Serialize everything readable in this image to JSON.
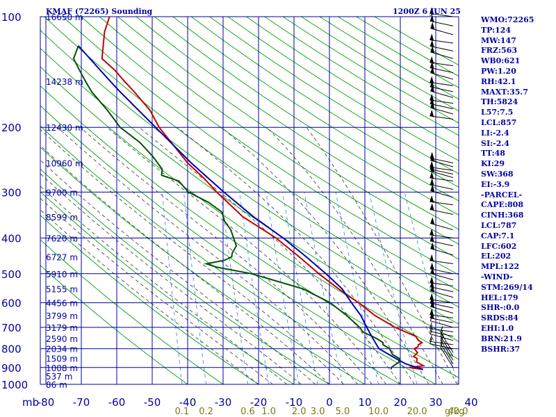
{
  "header": {
    "station": "KMAF (72265) Sounding",
    "time": "1200Z  6 JUN 25"
  },
  "indices": [
    "WMO:72265",
    "TP:124",
    "MW:147",
    "FRZ:563",
    "WB0:621",
    "PW:1.20",
    "RH:42.1",
    "MAXT:35.7",
    "TH:5824",
    "L57:7.5",
    "LCL:857",
    "LI:-2.4",
    "SI:-2.4",
    "TT:48",
    "KI:29",
    "SW:368",
    "EI:-3.9",
    "-PARCEL-",
    "CAPE:808",
    "CINH:368",
    "LCL:787",
    "CAP:7.1",
    "LFC:602",
    "EL:202",
    "MPL:122",
    "-WIND-",
    "STM:269/14",
    "HEL:179",
    "SHR-:0.0",
    "SRDS:84",
    "EHI:1.0",
    "BRN:21.9",
    "BSHR:37"
  ],
  "chart_data": {
    "type": "skew-t",
    "title": "KMAF (72265) Sounding",
    "valid_time": "1200Z  6 JUN 25",
    "x_axis": {
      "label": "mb",
      "unit": "°C",
      "ticks": [
        -80,
        -70,
        -60,
        -50,
        -40,
        -30,
        -20,
        -10,
        0,
        10,
        20,
        30,
        40
      ],
      "range": [
        -80,
        40
      ]
    },
    "y_axis": {
      "unit": "mb",
      "log_scale": true,
      "ticks": [
        100,
        200,
        300,
        400,
        500,
        600,
        700,
        800,
        900,
        1000
      ],
      "range": [
        100,
        1000
      ]
    },
    "mixing_ratio_labels": {
      "unit": "g/kg",
      "values": [
        "0.1",
        "0.2",
        "0.6",
        "1.0",
        "2.0",
        "3.0",
        "5.0",
        "10.0",
        "20.0",
        "40.0"
      ],
      "suffix_label": "g/kg"
    },
    "height_labels": [
      {
        "p": 100,
        "label": "16650 m"
      },
      {
        "p": 150,
        "label": "14238 m"
      },
      {
        "p": 200,
        "label": "12430 m"
      },
      {
        "p": 250,
        "label": "10960 m"
      },
      {
        "p": 300,
        "label": "9700 m"
      },
      {
        "p": 350,
        "label": "8599 m"
      },
      {
        "p": 400,
        "label": "7620 m"
      },
      {
        "p": 450,
        "label": "6727 m"
      },
      {
        "p": 500,
        "label": "5910 m"
      },
      {
        "p": 550,
        "label": "5155 m"
      },
      {
        "p": 600,
        "label": "4456 m"
      },
      {
        "p": 650,
        "label": "3799 m"
      },
      {
        "p": 700,
        "label": "3179 m"
      },
      {
        "p": 750,
        "label": "2590 m"
      },
      {
        "p": 800,
        "label": "2034 m"
      },
      {
        "p": 850,
        "label": "1509 m"
      },
      {
        "p": 900,
        "label": "1008 m"
      },
      {
        "p": 950,
        "label": "537 m"
      },
      {
        "p": 1000,
        "label": "86 m"
      }
    ],
    "series": [
      {
        "color": "#c00000",
        "points": [
          [
            911,
            26
          ],
          [
            900,
            22
          ],
          [
            890,
            26
          ],
          [
            870,
            24
          ],
          [
            850,
            24
          ],
          [
            840,
            23
          ],
          [
            820,
            24
          ],
          [
            800,
            23
          ],
          [
            790,
            24
          ],
          [
            780,
            24
          ],
          [
            770,
            25
          ],
          [
            760,
            24
          ],
          [
            740,
            23
          ],
          [
            720,
            20
          ],
          [
            700,
            17
          ],
          [
            650,
            11
          ],
          [
            600,
            6
          ],
          [
            550,
            0
          ],
          [
            500,
            -6
          ],
          [
            450,
            -12
          ],
          [
            400,
            -19
          ],
          [
            350,
            -29
          ],
          [
            300,
            -37
          ],
          [
            275,
            -41
          ],
          [
            250,
            -46
          ],
          [
            200,
            -55
          ],
          [
            180,
            -58
          ],
          [
            160,
            -63
          ],
          [
            150,
            -66
          ],
          [
            140,
            -69
          ],
          [
            130,
            -73
          ],
          [
            120,
            -73
          ],
          [
            110,
            -73
          ],
          [
            100,
            -72
          ]
        ]
      },
      {
        "color": "#005000",
        "points": [
          [
            911,
            17
          ],
          [
            900,
            17
          ],
          [
            870,
            19
          ],
          [
            850,
            19
          ],
          [
            840,
            18
          ],
          [
            830,
            17
          ],
          [
            800,
            16
          ],
          [
            780,
            14
          ],
          [
            770,
            14
          ],
          [
            750,
            12
          ],
          [
            720,
            8
          ],
          [
            700,
            7
          ],
          [
            650,
            3
          ],
          [
            600,
            -2
          ],
          [
            550,
            -10
          ],
          [
            500,
            -25
          ],
          [
            480,
            -35
          ],
          [
            470,
            -38
          ],
          [
            460,
            -33
          ],
          [
            450,
            -31
          ],
          [
            440,
            -31
          ],
          [
            420,
            -30
          ],
          [
            400,
            -31
          ],
          [
            380,
            -32
          ],
          [
            360,
            -34
          ],
          [
            340,
            -35
          ],
          [
            320,
            -39
          ],
          [
            300,
            -45
          ],
          [
            280,
            -48
          ],
          [
            270,
            -53
          ],
          [
            260,
            -53
          ],
          [
            240,
            -56
          ],
          [
            220,
            -60
          ],
          [
            200,
            -66
          ],
          [
            180,
            -70
          ],
          [
            160,
            -75
          ],
          [
            150,
            -77
          ],
          [
            140,
            -79
          ],
          [
            130,
            -81
          ],
          [
            120,
            -80
          ]
        ]
      },
      {
        "color": "#0000b0",
        "points": [
          [
            911,
            26
          ],
          [
            880,
            21
          ],
          [
            850,
            18
          ],
          [
            800,
            13
          ],
          [
            750,
            11
          ],
          [
            700,
            9
          ],
          [
            650,
            7
          ],
          [
            600,
            4
          ],
          [
            550,
            1
          ],
          [
            500,
            -4
          ],
          [
            450,
            -10
          ],
          [
            400,
            -17
          ],
          [
            350,
            -26
          ],
          [
            300,
            -35
          ],
          [
            250,
            -45
          ],
          [
            200,
            -56
          ],
          [
            160,
            -67
          ],
          [
            150,
            -70
          ],
          [
            120,
            -80
          ]
        ]
      }
    ],
    "wind_barbs_pressure": [
      100,
      106,
      112,
      118,
      124,
      130,
      136,
      142,
      148,
      154,
      160,
      166,
      172,
      178,
      184,
      190,
      250,
      256,
      262,
      268,
      274,
      280,
      295,
      310,
      325,
      345,
      380,
      400,
      420,
      445,
      470,
      500,
      520,
      540,
      560,
      580,
      600,
      620,
      640,
      660,
      680,
      700,
      720,
      740,
      760,
      780,
      800,
      820,
      840,
      860,
      880,
      900
    ],
    "grid": true
  }
}
